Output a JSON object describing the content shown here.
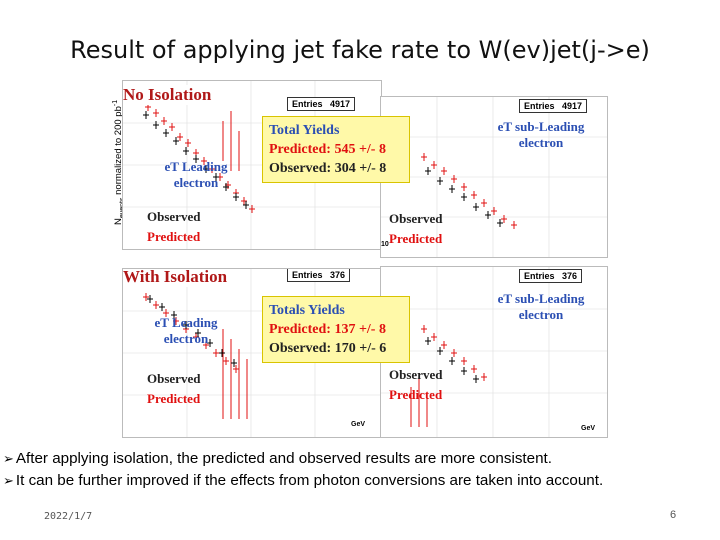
{
  "slide": {
    "title": "Result of applying jet fake rate to W(ev)jet(j->e)",
    "y_axis_label": "N",
    "y_axis_sub": "events",
    "y_axis_rest": " normalized to 200 pb",
    "y_axis_sup": "-1",
    "bullets": [
      "After applying isolation,  the predicted and observed results are more consistent.",
      "It can be further improved if the effects from photon conversions are taken into account."
    ],
    "footer_date": "2022/1/7",
    "page_number": "6"
  },
  "figure": {
    "no_isolation": {
      "heading": "No Isolation",
      "leading": {
        "label_line1": "eT Leading",
        "label_line2": "electron",
        "observed": "Observed",
        "predicted": "Predicted"
      },
      "subleading": {
        "entries_label": "Entries",
        "entries_value": "4917",
        "label_line1": "eT sub-Leading",
        "label_line2": "electron",
        "observed": "Observed",
        "predicted": "Predicted",
        "ytick_a": "10",
        "ytick_b": "10"
      },
      "center_entries_label": "Entries",
      "center_entries_value": "4917",
      "yields": {
        "heading": "Total Yields",
        "predicted": "Predicted: 545 +/- 8",
        "observed": "Observed: 304 +/- 8"
      }
    },
    "with_isolation": {
      "heading": "With Isolation",
      "leading": {
        "label_line1": "eT Leading",
        "label_line2": "electron",
        "observed": "Observed",
        "predicted": "Predicted",
        "xaxis": "GeV"
      },
      "subleading": {
        "entries_label": "Entries",
        "entries_value": "376",
        "label_line1": "eT sub-Leading",
        "label_line2": "electron",
        "observed": "Observed",
        "predicted": "Predicted",
        "xaxis": "GeV"
      },
      "center_entries_label": "Entries",
      "center_entries_value": "376",
      "yields": {
        "heading": "Totals Yields",
        "predicted": "Predicted: 137 +/- 8",
        "observed": "Observed: 170 +/- 6"
      }
    },
    "colors": {
      "observed": "#000000",
      "predicted": "#e01010",
      "label_blue": "#2b4fb3",
      "yield_box": "#fff9a8"
    }
  }
}
